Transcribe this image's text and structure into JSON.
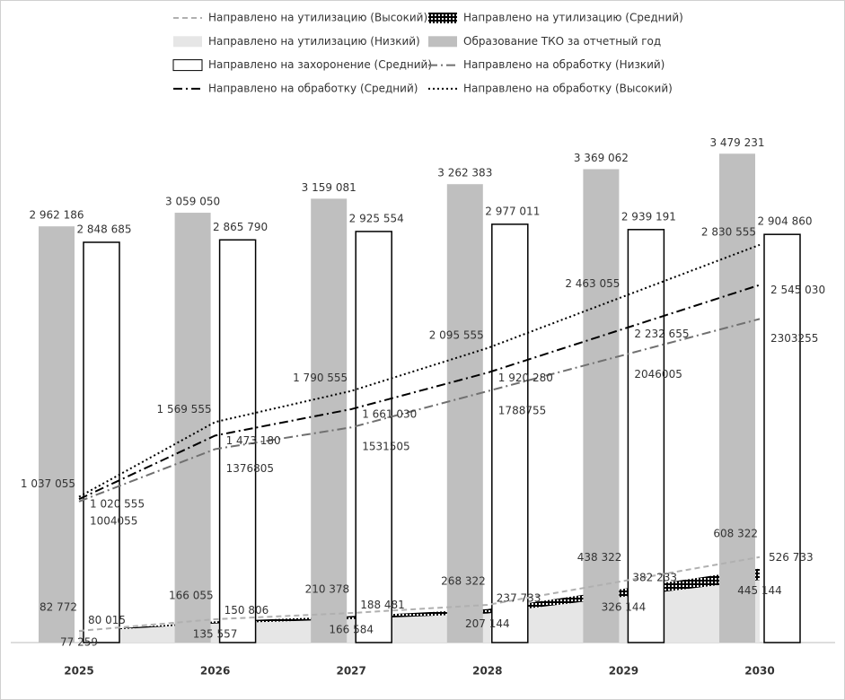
{
  "chart_data": {
    "type": "combo",
    "categories": [
      "2025",
      "2026",
      "2027",
      "2028",
      "2029",
      "2030"
    ],
    "ylim": [
      0,
      3500000
    ],
    "series": [
      {
        "name": "Направлено на утилизацию (Высокий)",
        "kind": "line",
        "style": "dashed",
        "color": "#b0b0b0",
        "values": [
          82772,
          166055,
          210378,
          268322,
          438322,
          608322
        ],
        "value_labels": [
          "82 772",
          "166 055",
          "210 378",
          "268 322",
          "438 322",
          "608 322"
        ]
      },
      {
        "name": "Направлено на утилизацию (Средний)",
        "kind": "area",
        "style": "pattern",
        "color": "#000000",
        "values": [
          80015,
          150806,
          188481,
          237733,
          382233,
          526733
        ],
        "value_labels": [
          "80 015",
          "150 806",
          "188 481",
          "237 733",
          "382 233",
          "526 733"
        ]
      },
      {
        "name": "Направлено на утилизацию (Низкий)",
        "kind": "area",
        "style": "solid",
        "color": "#e6e6e6",
        "values": [
          77259,
          135557,
          166584,
          207144,
          326144,
          445144
        ],
        "value_labels": [
          "77 259",
          "135 557",
          "166 584",
          "207 144",
          "326 144",
          "445 144"
        ]
      },
      {
        "name": "Образование ТКО за отчетный год",
        "kind": "bar",
        "style": "solid",
        "color": "#bfbfbf",
        "values": [
          2962186,
          3059050,
          3159081,
          3262383,
          3369062,
          3479231
        ],
        "value_labels": [
          "2 962 186",
          "3 059 050",
          "3 159 081",
          "3 262 383",
          "3 369 062",
          "3 479 231"
        ]
      },
      {
        "name": "Направлено на захоронение (Средний)",
        "kind": "bar",
        "style": "outline",
        "color": "#ffffff",
        "values": [
          2848685,
          2865790,
          2925554,
          2977011,
          2939191,
          2904860
        ],
        "value_labels": [
          "2 848 685",
          "2 865 790",
          "2 925 554",
          "2 977 011",
          "2 939 191",
          "2 904 860"
        ]
      },
      {
        "name": "Направлено на обработку (Низкий)",
        "kind": "line",
        "style": "dashdot",
        "color": "#707070",
        "values": [
          1004055,
          1376805,
          1531505,
          1788755,
          2046005,
          2303255
        ]
      },
      {
        "name": "Направлено на обработку (Средний)",
        "kind": "line",
        "style": "dashdot",
        "color": "#000000",
        "values": [
          1020555,
          1473180,
          1661030,
          1920280,
          2232655,
          2545030
        ],
        "value_labels": [
          "1 020 555",
          "1 473 180",
          "1 661 030",
          "1 920 280",
          "2 232 655",
          "2 545 030"
        ]
      },
      {
        "name": "Направлено на обработку (Высокий)",
        "kind": "line",
        "style": "dotted",
        "color": "#000000",
        "values": [
          1037055,
          1569555,
          1790555,
          2095555,
          2463055,
          2830555
        ],
        "value_labels": [
          "1 037 055",
          "1 569 555",
          "1 790 555",
          "2 095 555",
          "2 463 055",
          "2 830 555"
        ]
      }
    ]
  }
}
